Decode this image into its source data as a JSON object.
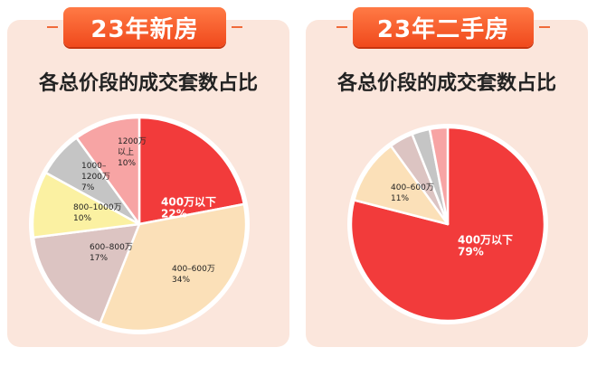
{
  "chart_data": [
    {
      "type": "pie",
      "badge": "23年新房",
      "title": "各总价段的成交套数占比",
      "slices": [
        {
          "label": [
            "400万以下",
            "22%"
          ],
          "value": 22,
          "color": "#f23b3b",
          "text_color": "#ffffff",
          "bold": true
        },
        {
          "label": [
            "400–600万",
            "34%"
          ],
          "value": 34,
          "color": "#fbe0b8",
          "text_color": "#222222",
          "bold": false
        },
        {
          "label": [
            "600–800万",
            "17%"
          ],
          "value": 17,
          "color": "#dcc4c2",
          "text_color": "#222222",
          "bold": false
        },
        {
          "label": [
            "800–1000万",
            "10%"
          ],
          "value": 10,
          "color": "#fbf1a2",
          "text_color": "#222222",
          "bold": false
        },
        {
          "label": [
            "1000–",
            "1200万",
            "7%"
          ],
          "value": 7,
          "color": "#c5c5c5",
          "text_color": "#222222",
          "bold": false
        },
        {
          "label": [
            "1200万",
            "以上",
            "10%"
          ],
          "value": 10,
          "color": "#f7a4a4",
          "text_color": "#222222",
          "bold": false
        }
      ]
    },
    {
      "type": "pie",
      "badge": "23年二手房",
      "title": "各总价段的成交套数占比",
      "slices": [
        {
          "label": [
            "400万以下",
            "79%"
          ],
          "value": 79,
          "color": "#f23b3b",
          "text_color": "#ffffff",
          "bold": true
        },
        {
          "label": [
            "400–600万",
            "11%"
          ],
          "value": 11,
          "color": "#fbe0b8",
          "text_color": "#222222",
          "bold": false
        },
        {
          "label": [],
          "value": 4,
          "color": "#dcc4c2",
          "text_color": "#222222",
          "bold": false
        },
        {
          "label": [],
          "value": 3,
          "color": "#c5c5c5",
          "text_color": "#222222",
          "bold": false
        },
        {
          "label": [],
          "value": 3,
          "color": "#f7a4a4",
          "text_color": "#222222",
          "bold": false
        }
      ]
    }
  ]
}
